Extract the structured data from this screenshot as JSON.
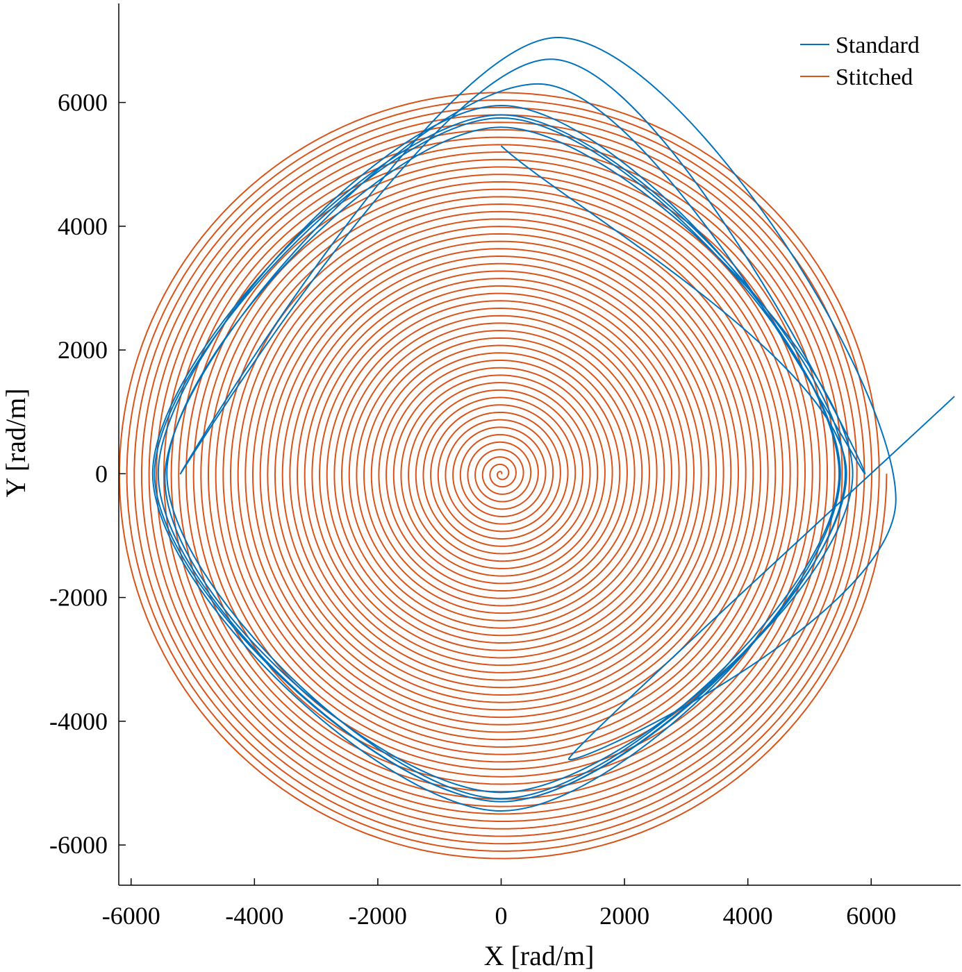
{
  "chart_data": {
    "type": "line",
    "title": "",
    "xlabel": "X [rad/m]",
    "ylabel": "Y [rad/m]",
    "xlim": [
      -6200,
      7450
    ],
    "ylim": [
      -6650,
      7600
    ],
    "xticks": [
      -6000,
      -4000,
      -2000,
      0,
      2000,
      4000,
      6000
    ],
    "yticks": [
      -6000,
      -4000,
      -2000,
      0,
      2000,
      4000,
      6000
    ],
    "grid": false,
    "legend_position": "top-right",
    "series": [
      {
        "name": "Standard",
        "color": "#0072BD",
        "note_shape": "spiral trace",
        "x": [
          0,
          5600,
          0,
          -5620,
          0,
          5500,
          0,
          -5650,
          0,
          5580,
          0,
          -5560,
          0,
          5480,
          0,
          -5420,
          0,
          5700,
          0,
          -5450,
          600,
          5900,
          800,
          -5200,
          950,
          6400,
          1100,
          7350
        ],
        "y": [
          5300,
          0,
          -5300,
          0,
          5750,
          0,
          -5450,
          0,
          5800,
          0,
          -5300,
          0,
          5950,
          0,
          -5250,
          0,
          5600,
          0,
          -5150,
          0,
          6300,
          0,
          6700,
          0,
          7050,
          -400,
          -4600,
          1250
        ]
      },
      {
        "name": "Stitched",
        "color": "#D95319",
        "note_shape": "archimedean spiral from origin",
        "start_xy": [
          0,
          0
        ],
        "end_xy": [
          6280,
          50
        ],
        "max_radius": 6250
      }
    ]
  }
}
